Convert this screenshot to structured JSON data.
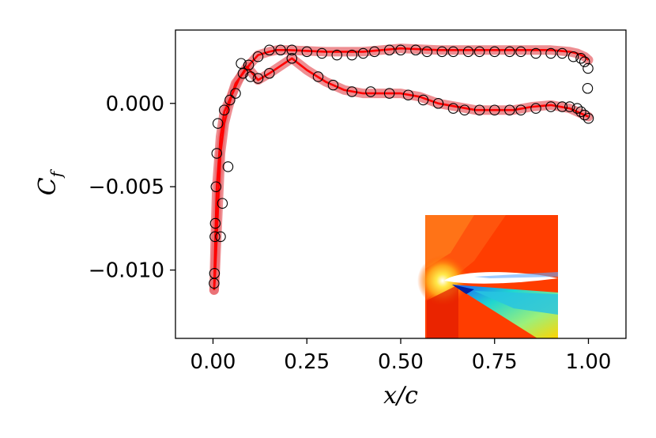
{
  "chart_data": {
    "type": "line",
    "title": "",
    "xlabel": "x/c",
    "ylabel_main": "C",
    "ylabel_sub": "f",
    "xlim": [
      -0.1,
      1.1
    ],
    "ylim": [
      -0.0141,
      0.0044
    ],
    "x_ticks": [
      0.0,
      0.25,
      0.5,
      0.75,
      1.0
    ],
    "x_tick_labels": [
      "0.00",
      "0.25",
      "0.50",
      "0.75",
      "1.00"
    ],
    "y_ticks": [
      0.0,
      -0.005,
      -0.01
    ],
    "y_tick_labels": [
      "0.000",
      "−0.005",
      "−0.010"
    ],
    "colors": {
      "line": "#ff0000",
      "band": "#e8686e",
      "markers": "#000000"
    },
    "inset_description_name": "airflow-contour-inset",
    "series": [
      {
        "name": "prediction-upper",
        "kind": "line",
        "points": [
          [
            1.0,
            0.0026
          ],
          [
            0.99,
            0.0028
          ],
          [
            0.97,
            0.003
          ],
          [
            0.95,
            0.0031
          ],
          [
            0.9,
            0.0032
          ],
          [
            0.8,
            0.0032
          ],
          [
            0.7,
            0.0032
          ],
          [
            0.6,
            0.0032
          ],
          [
            0.5,
            0.0033
          ],
          [
            0.4,
            0.0031
          ],
          [
            0.3,
            0.0031
          ],
          [
            0.2,
            0.0032
          ],
          [
            0.17,
            0.0032
          ],
          [
            0.15,
            0.0031
          ],
          [
            0.12,
            0.0029
          ],
          [
            0.1,
            0.0024
          ],
          [
            0.08,
            0.0018
          ],
          [
            0.06,
            0.0012
          ],
          [
            0.05,
            0.0005
          ],
          [
            0.04,
            -0.0003
          ],
          [
            0.03,
            -0.0012
          ],
          [
            0.02,
            -0.003
          ],
          [
            0.015,
            -0.0055
          ],
          [
            0.01,
            -0.008
          ],
          [
            0.005,
            -0.0105
          ],
          [
            0.003,
            -0.0112
          ]
        ]
      },
      {
        "name": "prediction-lower",
        "kind": "line",
        "points": [
          [
            0.003,
            -0.0112
          ],
          [
            0.006,
            -0.008
          ],
          [
            0.01,
            -0.005
          ],
          [
            0.02,
            -0.002
          ],
          [
            0.03,
            -0.0005
          ],
          [
            0.05,
            0.0005
          ],
          [
            0.07,
            0.0015
          ],
          [
            0.09,
            0.0022
          ],
          [
            0.12,
            0.0014
          ],
          [
            0.15,
            0.0018
          ],
          [
            0.21,
            0.0027
          ],
          [
            0.25,
            0.002
          ],
          [
            0.3,
            0.0013
          ],
          [
            0.35,
            0.0008
          ],
          [
            0.4,
            0.0006
          ],
          [
            0.5,
            0.0006
          ],
          [
            0.55,
            0.0004
          ],
          [
            0.6,
            0.0
          ],
          [
            0.7,
            -0.0004
          ],
          [
            0.8,
            -0.0004
          ],
          [
            0.85,
            -0.0002
          ],
          [
            0.9,
            -0.0001
          ],
          [
            0.95,
            -0.0003
          ],
          [
            0.98,
            -0.0006
          ],
          [
            1.0,
            -0.0008
          ]
        ]
      },
      {
        "name": "reference-upper-markers",
        "kind": "scatter",
        "points": [
          [
            0.999,
            0.0021
          ],
          [
            0.998,
            0.0009
          ],
          [
            0.99,
            0.0025
          ],
          [
            0.98,
            0.0027
          ],
          [
            0.96,
            0.0028
          ],
          [
            0.93,
            0.003
          ],
          [
            0.9,
            0.003
          ],
          [
            0.86,
            0.003
          ],
          [
            0.82,
            0.0031
          ],
          [
            0.79,
            0.0031
          ],
          [
            0.75,
            0.0031
          ],
          [
            0.71,
            0.0031
          ],
          [
            0.68,
            0.0031
          ],
          [
            0.64,
            0.0031
          ],
          [
            0.61,
            0.0031
          ],
          [
            0.57,
            0.0031
          ],
          [
            0.54,
            0.0032
          ],
          [
            0.5,
            0.0032
          ],
          [
            0.47,
            0.0032
          ],
          [
            0.43,
            0.0031
          ],
          [
            0.4,
            0.003
          ],
          [
            0.37,
            0.0029
          ],
          [
            0.33,
            0.0029
          ],
          [
            0.29,
            0.003
          ],
          [
            0.25,
            0.0031
          ],
          [
            0.21,
            0.0032
          ],
          [
            0.18,
            0.0032
          ],
          [
            0.15,
            0.0032
          ],
          [
            0.12,
            0.0028
          ],
          [
            0.095,
            0.0023
          ],
          [
            0.075,
            0.0024
          ]
        ]
      },
      {
        "name": "reference-lower-markers",
        "kind": "scatter",
        "points": [
          [
            0.003,
            -0.0108
          ],
          [
            0.004,
            -0.0102
          ],
          [
            0.005,
            -0.008
          ],
          [
            0.006,
            -0.0072
          ],
          [
            0.008,
            -0.005
          ],
          [
            0.01,
            -0.003
          ],
          [
            0.013,
            -0.0012
          ],
          [
            0.02,
            -0.008
          ],
          [
            0.025,
            -0.006
          ],
          [
            0.03,
            -0.0004
          ],
          [
            0.04,
            -0.0038
          ],
          [
            0.045,
            0.0002
          ],
          [
            0.06,
            0.0006
          ],
          [
            0.08,
            0.0018
          ],
          [
            0.1,
            0.0016
          ],
          [
            0.12,
            0.0015
          ],
          [
            0.15,
            0.0018
          ],
          [
            0.21,
            0.0027
          ],
          [
            0.28,
            0.0016
          ],
          [
            0.32,
            0.0011
          ],
          [
            0.37,
            0.0007
          ],
          [
            0.42,
            0.0007
          ],
          [
            0.47,
            0.0006
          ],
          [
            0.52,
            0.0005
          ],
          [
            0.56,
            0.0002
          ],
          [
            0.6,
            0.0
          ],
          [
            0.64,
            -0.0003
          ],
          [
            0.67,
            -0.0004
          ],
          [
            0.71,
            -0.0004
          ],
          [
            0.75,
            -0.0004
          ],
          [
            0.79,
            -0.0004
          ],
          [
            0.82,
            -0.0004
          ],
          [
            0.86,
            -0.0003
          ],
          [
            0.9,
            -0.0002
          ],
          [
            0.93,
            -0.0002
          ],
          [
            0.95,
            -0.0002
          ],
          [
            0.97,
            -0.0003
          ],
          [
            0.98,
            -0.0005
          ],
          [
            0.99,
            -0.0007
          ],
          [
            1.0,
            -0.0009
          ]
        ]
      }
    ]
  }
}
